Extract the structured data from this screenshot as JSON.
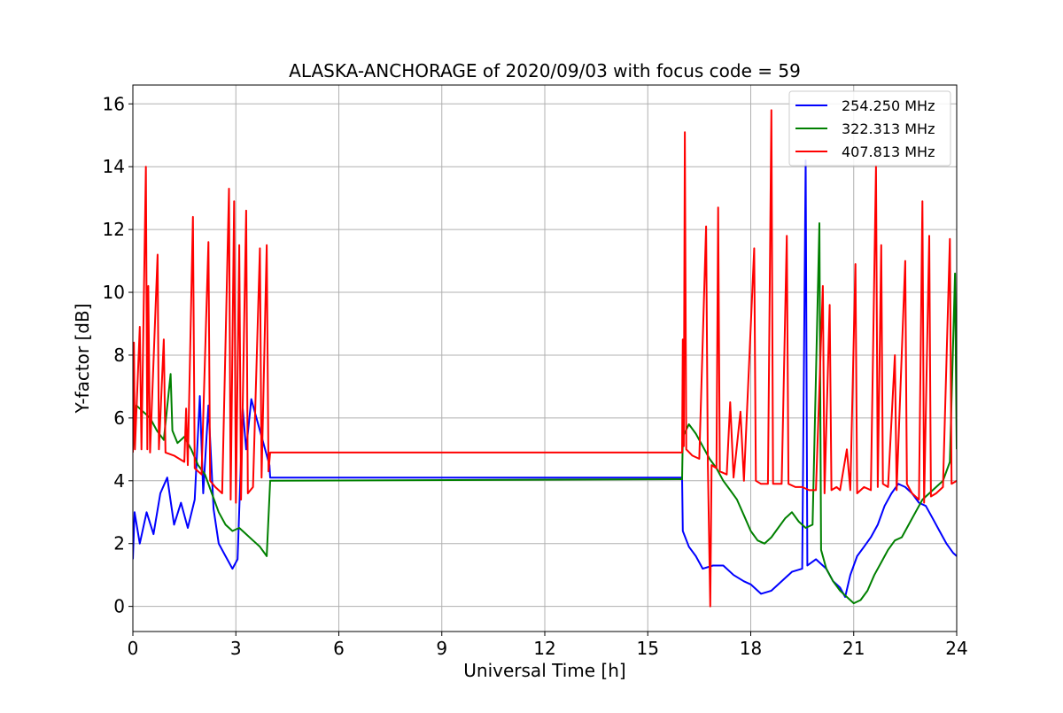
{
  "chart_data": {
    "type": "line",
    "title": "ALASKA-ANCHORAGE of 2020/09/03 with focus code = 59",
    "xlabel": "Universal Time [h]",
    "ylabel": "Y-factor [dB]",
    "xlim": [
      0,
      24
    ],
    "ylim": [
      -0.8,
      16.6
    ],
    "xticks": [
      0,
      3,
      6,
      9,
      12,
      15,
      18,
      21,
      24
    ],
    "yticks": [
      0,
      2,
      4,
      6,
      8,
      10,
      12,
      14,
      16
    ],
    "xtick_labels": [
      "0",
      "3",
      "6",
      "9",
      "12",
      "15",
      "18",
      "21",
      "24"
    ],
    "ytick_labels": [
      "0",
      "2",
      "4",
      "6",
      "8",
      "10",
      "12",
      "14",
      "16"
    ],
    "grid": true,
    "legend_position": "top-right",
    "series": [
      {
        "name": "254.250 MHz",
        "color": "#0000ff",
        "points": [
          [
            0,
            1.5
          ],
          [
            0.05,
            3.0
          ],
          [
            0.2,
            2.0
          ],
          [
            0.4,
            3.0
          ],
          [
            0.6,
            2.3
          ],
          [
            0.8,
            3.6
          ],
          [
            1.0,
            4.1
          ],
          [
            1.2,
            2.6
          ],
          [
            1.4,
            3.3
          ],
          [
            1.6,
            2.5
          ],
          [
            1.8,
            3.4
          ],
          [
            1.95,
            6.7
          ],
          [
            2.05,
            3.6
          ],
          [
            2.2,
            6.4
          ],
          [
            2.35,
            3.1
          ],
          [
            2.5,
            2.0
          ],
          [
            2.7,
            1.6
          ],
          [
            2.9,
            1.2
          ],
          [
            3.05,
            1.5
          ],
          [
            3.2,
            6.3
          ],
          [
            3.3,
            5.0
          ],
          [
            3.45,
            6.6
          ],
          [
            3.6,
            6.0
          ],
          [
            3.8,
            5.2
          ],
          [
            3.98,
            4.5
          ],
          [
            4.0,
            4.1
          ],
          [
            16.0,
            4.1
          ],
          [
            16.02,
            2.4
          ],
          [
            16.2,
            1.9
          ],
          [
            16.4,
            1.6
          ],
          [
            16.6,
            1.2
          ],
          [
            16.9,
            1.3
          ],
          [
            17.2,
            1.3
          ],
          [
            17.5,
            1.0
          ],
          [
            17.8,
            0.8
          ],
          [
            18.0,
            0.7
          ],
          [
            18.3,
            0.4
          ],
          [
            18.6,
            0.5
          ],
          [
            18.9,
            0.8
          ],
          [
            19.2,
            1.1
          ],
          [
            19.5,
            1.2
          ],
          [
            19.6,
            14.2
          ],
          [
            19.65,
            1.3
          ],
          [
            19.9,
            1.5
          ],
          [
            20.2,
            1.2
          ],
          [
            20.4,
            0.8
          ],
          [
            20.6,
            0.6
          ],
          [
            20.75,
            0.3
          ],
          [
            20.9,
            1.0
          ],
          [
            21.1,
            1.6
          ],
          [
            21.3,
            1.9
          ],
          [
            21.5,
            2.2
          ],
          [
            21.7,
            2.6
          ],
          [
            21.9,
            3.2
          ],
          [
            22.1,
            3.6
          ],
          [
            22.3,
            3.9
          ],
          [
            22.5,
            3.8
          ],
          [
            22.7,
            3.6
          ],
          [
            22.9,
            3.3
          ],
          [
            23.1,
            3.2
          ],
          [
            23.3,
            2.8
          ],
          [
            23.5,
            2.4
          ],
          [
            23.7,
            2.0
          ],
          [
            23.9,
            1.7
          ],
          [
            24.0,
            1.6
          ]
        ]
      },
      {
        "name": "322.313 MHz",
        "color": "#008000",
        "points": [
          [
            0,
            5.0
          ],
          [
            0.1,
            6.4
          ],
          [
            0.3,
            6.2
          ],
          [
            0.5,
            6.0
          ],
          [
            0.7,
            5.6
          ],
          [
            0.9,
            5.3
          ],
          [
            1.1,
            7.4
          ],
          [
            1.15,
            5.6
          ],
          [
            1.3,
            5.2
          ],
          [
            1.5,
            5.4
          ],
          [
            1.7,
            5.0
          ],
          [
            1.9,
            4.5
          ],
          [
            2.1,
            4.2
          ],
          [
            2.3,
            3.6
          ],
          [
            2.5,
            3.0
          ],
          [
            2.7,
            2.6
          ],
          [
            2.9,
            2.4
          ],
          [
            3.1,
            2.5
          ],
          [
            3.3,
            2.3
          ],
          [
            3.5,
            2.1
          ],
          [
            3.7,
            1.9
          ],
          [
            3.9,
            1.6
          ],
          [
            4.0,
            4.0
          ],
          [
            16.0,
            4.05
          ],
          [
            16.02,
            5.4
          ],
          [
            16.2,
            5.8
          ],
          [
            16.4,
            5.5
          ],
          [
            16.6,
            5.1
          ],
          [
            16.8,
            4.7
          ],
          [
            17.0,
            4.4
          ],
          [
            17.2,
            4.0
          ],
          [
            17.4,
            3.7
          ],
          [
            17.6,
            3.4
          ],
          [
            17.8,
            2.9
          ],
          [
            18.0,
            2.4
          ],
          [
            18.2,
            2.1
          ],
          [
            18.4,
            2.0
          ],
          [
            18.6,
            2.2
          ],
          [
            18.8,
            2.5
          ],
          [
            19.0,
            2.8
          ],
          [
            19.2,
            3.0
          ],
          [
            19.4,
            2.7
          ],
          [
            19.6,
            2.5
          ],
          [
            19.8,
            2.6
          ],
          [
            20.0,
            12.2
          ],
          [
            20.05,
            1.8
          ],
          [
            20.2,
            1.2
          ],
          [
            20.4,
            0.8
          ],
          [
            20.6,
            0.5
          ],
          [
            20.8,
            0.3
          ],
          [
            21.0,
            0.1
          ],
          [
            21.2,
            0.2
          ],
          [
            21.4,
            0.5
          ],
          [
            21.6,
            1.0
          ],
          [
            21.8,
            1.4
          ],
          [
            22.0,
            1.8
          ],
          [
            22.2,
            2.1
          ],
          [
            22.4,
            2.2
          ],
          [
            22.6,
            2.6
          ],
          [
            22.8,
            3.0
          ],
          [
            23.0,
            3.4
          ],
          [
            23.2,
            3.6
          ],
          [
            23.4,
            3.8
          ],
          [
            23.6,
            4.0
          ],
          [
            23.8,
            4.6
          ],
          [
            23.95,
            10.6
          ],
          [
            24.0,
            5.0
          ]
        ]
      },
      {
        "name": "407.813 MHz",
        "color": "#ff0000",
        "points": [
          [
            0,
            4.9
          ],
          [
            0.03,
            8.4
          ],
          [
            0.06,
            5.0
          ],
          [
            0.2,
            8.9
          ],
          [
            0.25,
            5.0
          ],
          [
            0.38,
            14.0
          ],
          [
            0.42,
            5.0
          ],
          [
            0.45,
            10.2
          ],
          [
            0.5,
            4.9
          ],
          [
            0.72,
            11.2
          ],
          [
            0.76,
            5.0
          ],
          [
            0.9,
            8.5
          ],
          [
            0.95,
            4.9
          ],
          [
            1.2,
            4.8
          ],
          [
            1.5,
            4.6
          ],
          [
            1.55,
            6.3
          ],
          [
            1.6,
            4.5
          ],
          [
            1.75,
            12.4
          ],
          [
            1.8,
            4.4
          ],
          [
            2.0,
            4.2
          ],
          [
            2.2,
            11.6
          ],
          [
            2.25,
            4.0
          ],
          [
            2.4,
            3.8
          ],
          [
            2.6,
            3.6
          ],
          [
            2.8,
            13.3
          ],
          [
            2.85,
            3.4
          ],
          [
            2.95,
            12.9
          ],
          [
            3.0,
            3.3
          ],
          [
            3.1,
            11.5
          ],
          [
            3.15,
            3.4
          ],
          [
            3.3,
            12.6
          ],
          [
            3.35,
            3.6
          ],
          [
            3.5,
            3.8
          ],
          [
            3.7,
            11.4
          ],
          [
            3.75,
            4.1
          ],
          [
            3.9,
            11.5
          ],
          [
            3.95,
            4.3
          ],
          [
            4.0,
            4.9
          ],
          [
            16.0,
            4.9
          ],
          [
            16.02,
            8.5
          ],
          [
            16.05,
            5.1
          ],
          [
            16.08,
            15.1
          ],
          [
            16.12,
            5.0
          ],
          [
            16.3,
            4.8
          ],
          [
            16.5,
            4.7
          ],
          [
            16.7,
            12.1
          ],
          [
            16.75,
            4.5
          ],
          [
            16.82,
            0.0
          ],
          [
            16.86,
            4.5
          ],
          [
            17.0,
            4.4
          ],
          [
            17.05,
            12.7
          ],
          [
            17.1,
            4.3
          ],
          [
            17.3,
            4.2
          ],
          [
            17.4,
            6.5
          ],
          [
            17.5,
            4.1
          ],
          [
            17.7,
            6.2
          ],
          [
            17.8,
            4.0
          ],
          [
            18.1,
            11.4
          ],
          [
            18.15,
            4.0
          ],
          [
            18.3,
            3.9
          ],
          [
            18.5,
            3.9
          ],
          [
            18.6,
            15.8
          ],
          [
            18.65,
            3.9
          ],
          [
            18.9,
            3.9
          ],
          [
            19.05,
            11.8
          ],
          [
            19.1,
            3.9
          ],
          [
            19.3,
            3.8
          ],
          [
            19.5,
            3.8
          ],
          [
            19.7,
            3.7
          ],
          [
            19.9,
            3.7
          ],
          [
            20.1,
            10.2
          ],
          [
            20.15,
            3.6
          ],
          [
            20.3,
            9.6
          ],
          [
            20.35,
            3.7
          ],
          [
            20.5,
            3.8
          ],
          [
            20.6,
            3.7
          ],
          [
            20.8,
            5.0
          ],
          [
            20.9,
            3.7
          ],
          [
            21.05,
            10.9
          ],
          [
            21.1,
            3.6
          ],
          [
            21.3,
            3.8
          ],
          [
            21.5,
            3.7
          ],
          [
            21.65,
            14.0
          ],
          [
            21.7,
            3.8
          ],
          [
            21.8,
            11.5
          ],
          [
            21.85,
            3.9
          ],
          [
            22.0,
            3.8
          ],
          [
            22.2,
            8.0
          ],
          [
            22.25,
            3.7
          ],
          [
            22.5,
            11.0
          ],
          [
            22.55,
            3.9
          ],
          [
            22.7,
            3.6
          ],
          [
            22.9,
            3.4
          ],
          [
            23.0,
            12.9
          ],
          [
            23.05,
            3.3
          ],
          [
            23.2,
            11.8
          ],
          [
            23.25,
            3.5
          ],
          [
            23.4,
            3.6
          ],
          [
            23.6,
            3.8
          ],
          [
            23.8,
            11.7
          ],
          [
            23.85,
            3.9
          ],
          [
            24.0,
            4.0
          ]
        ]
      }
    ]
  }
}
